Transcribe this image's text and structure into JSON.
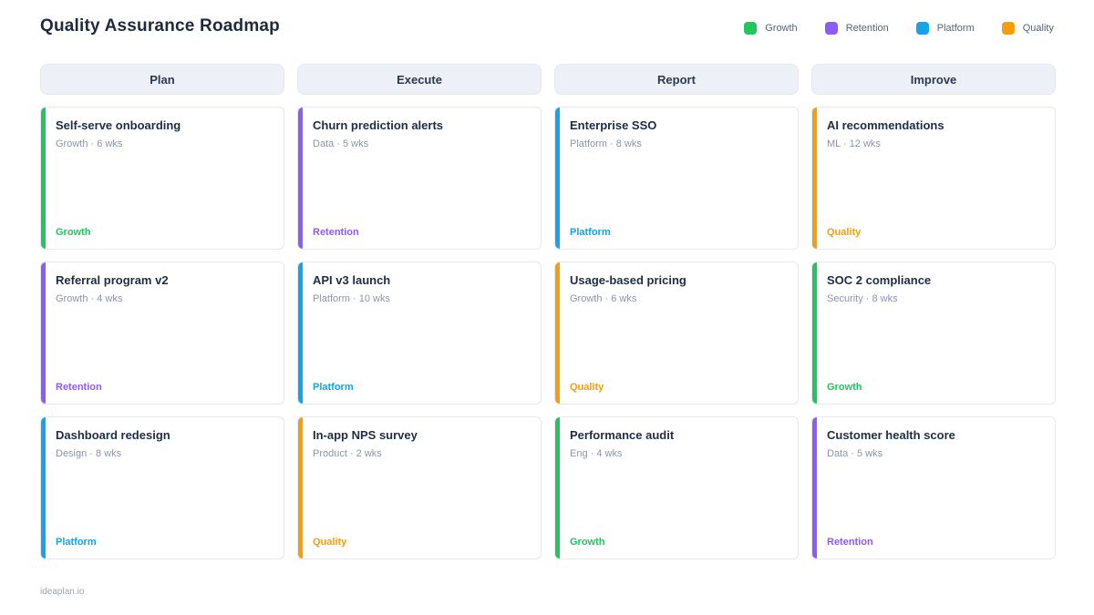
{
  "page": {
    "title": "Quality Assurance Roadmap",
    "footer": "ideaplan.io"
  },
  "legend": [
    {
      "label": "Growth",
      "color": "#22c55e"
    },
    {
      "label": "Retention",
      "color": "#8b5cf6"
    },
    {
      "label": "Platform",
      "color": "#16a3e8"
    },
    {
      "label": "Quality",
      "color": "#f59e0b"
    }
  ],
  "columns": [
    {
      "header": "Plan",
      "cards": [
        {
          "title": "Self-serve onboarding",
          "meta": "Growth · 6 wks",
          "tag": "Growth",
          "color": "#22c55e"
        },
        {
          "title": "Referral program v2",
          "meta": "Growth · 4 wks",
          "tag": "Retention",
          "color": "#8b5cf6"
        },
        {
          "title": "Dashboard redesign",
          "meta": "Design · 8 wks",
          "tag": "Platform",
          "color": "#16a3e8"
        }
      ]
    },
    {
      "header": "Execute",
      "cards": [
        {
          "title": "Churn prediction alerts",
          "meta": "Data · 5 wks",
          "tag": "Retention",
          "color": "#8b5cf6"
        },
        {
          "title": "API v3 launch",
          "meta": "Platform · 10 wks",
          "tag": "Platform",
          "color": "#16a3e8"
        },
        {
          "title": "In-app NPS survey",
          "meta": "Product · 2 wks",
          "tag": "Quality",
          "color": "#f59e0b"
        }
      ]
    },
    {
      "header": "Report",
      "cards": [
        {
          "title": "Enterprise SSO",
          "meta": "Platform · 8 wks",
          "tag": "Platform",
          "color": "#16a3e8"
        },
        {
          "title": "Usage-based pricing",
          "meta": "Growth · 6 wks",
          "tag": "Quality",
          "color": "#f59e0b"
        },
        {
          "title": "Performance audit",
          "meta": "Eng · 4 wks",
          "tag": "Growth",
          "color": "#22c55e"
        }
      ]
    },
    {
      "header": "Improve",
      "cards": [
        {
          "title": "AI recommendations",
          "meta": "ML · 12 wks",
          "tag": "Quality",
          "color": "#f59e0b"
        },
        {
          "title": "SOC 2 compliance",
          "meta": "Security · 8 wks",
          "tag": "Growth",
          "color": "#22c55e"
        },
        {
          "title": "Customer health score",
          "meta": "Data · 5 wks",
          "tag": "Retention",
          "color": "#8b5cf6"
        }
      ]
    }
  ]
}
